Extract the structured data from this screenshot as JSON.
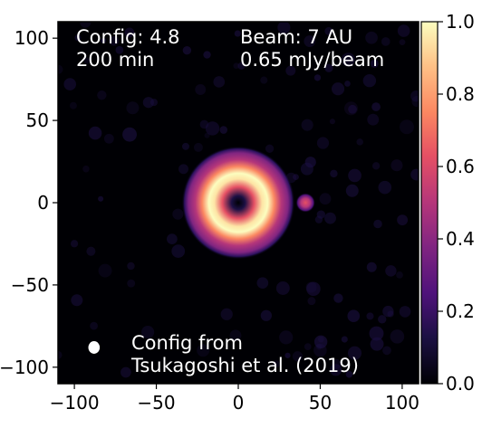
{
  "chart_data": {
    "type": "heatmap",
    "colormap": "magma",
    "xlim": [
      -110,
      110
    ],
    "ylim": [
      -110,
      110
    ],
    "x_ticks": [
      {
        "value": -100,
        "label": "−100"
      },
      {
        "value": -50,
        "label": "−50"
      },
      {
        "value": 0,
        "label": "0"
      },
      {
        "value": 50,
        "label": "50"
      },
      {
        "value": 100,
        "label": "100"
      }
    ],
    "y_ticks": [
      {
        "value": 100,
        "label": "100"
      },
      {
        "value": 50,
        "label": "50"
      },
      {
        "value": 0,
        "label": "0"
      },
      {
        "value": -50,
        "label": "−50"
      },
      {
        "value": -100,
        "label": "−100"
      }
    ],
    "colorbar": {
      "range": [
        0.0,
        1.0
      ],
      "ticks": [
        {
          "value": 1.0,
          "label": "1.0"
        },
        {
          "value": 0.8,
          "label": "0.8"
        },
        {
          "value": 0.6,
          "label": "0.6"
        },
        {
          "value": 0.4,
          "label": "0.4"
        },
        {
          "value": 0.2,
          "label": "0.2"
        },
        {
          "value": 0.0,
          "label": "0.0"
        }
      ]
    },
    "annotations": {
      "config": "Config: 4.8",
      "time": "200 min",
      "beam": "Beam: 7 AU",
      "noise": "0.65 mJy/beam",
      "source_line1": "Config from",
      "source_line2": "Tsukagoshi et al. (2019)"
    },
    "features": {
      "ring": {
        "center": [
          0,
          0
        ],
        "inner_radius": 4,
        "peak_radius": 17,
        "outer_radius": 32,
        "peak_value": 1.0
      },
      "companion": {
        "center": [
          41,
          0
        ],
        "radius": 6,
        "peak_value": 0.45
      },
      "beam_ellipse": {
        "center": [
          -88,
          -88
        ],
        "major": 7,
        "minor": 6
      }
    }
  }
}
